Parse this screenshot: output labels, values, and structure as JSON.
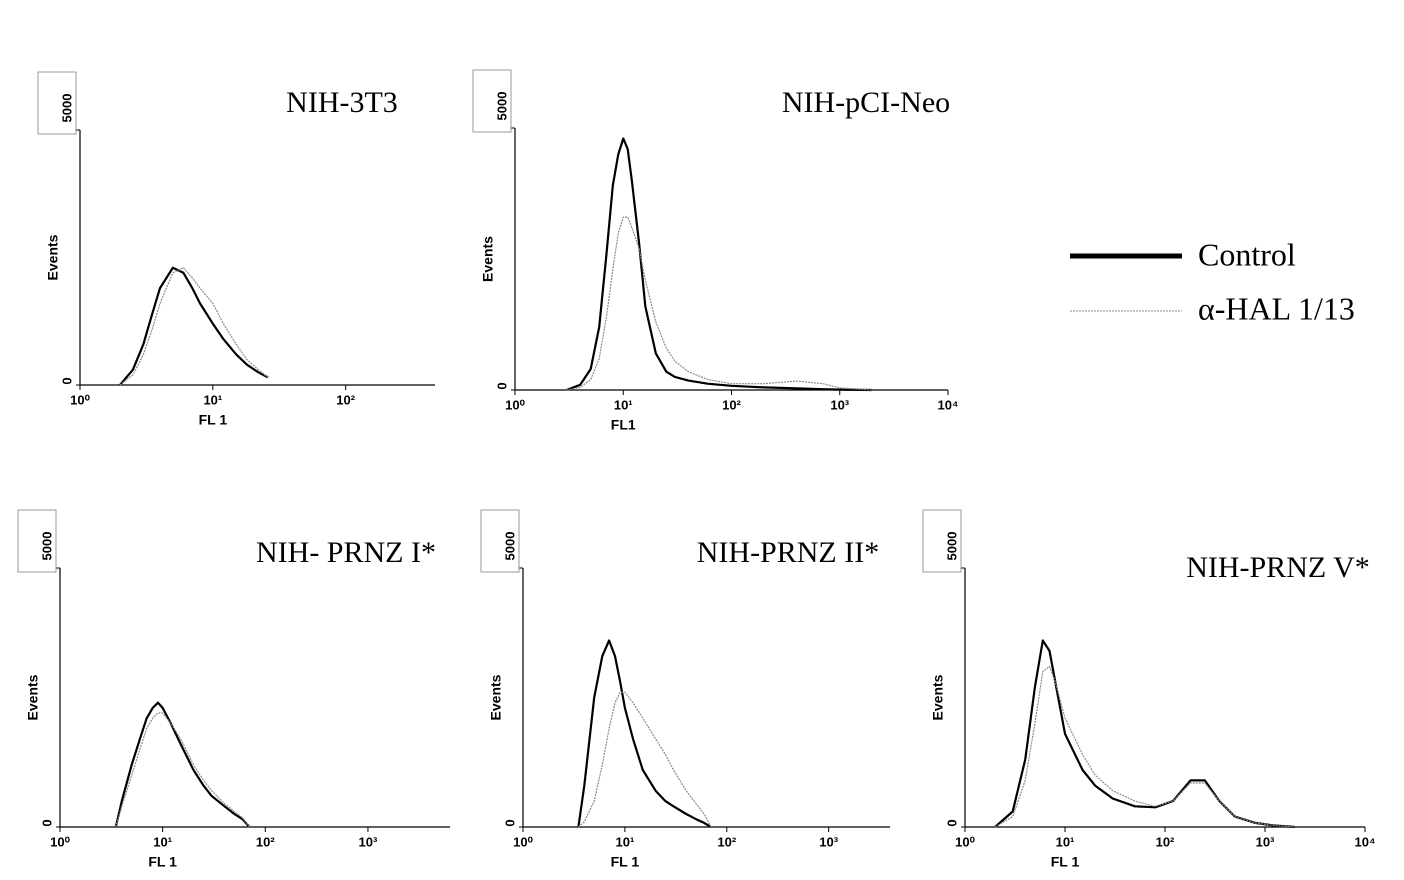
{
  "chart_data": [
    {
      "type": "line",
      "title": "NIH-3T3",
      "xlabel": "FL 1",
      "ylabel": "Events",
      "log_x": true,
      "xlim": [
        1,
        470
      ],
      "xticks": [
        {
          "value": 1,
          "label": "10⁰"
        },
        {
          "value": 10,
          "label": "10¹"
        },
        {
          "value": 100,
          "label": "10²"
        }
      ],
      "ylim": [
        0,
        5000
      ],
      "yticks": [
        0,
        5000
      ],
      "x": [
        2,
        2.5,
        3,
        3.5,
        4,
        5,
        6,
        7,
        8,
        10,
        12,
        15,
        18,
        22,
        26
      ],
      "series": [
        {
          "color": "#000000",
          "values": [
            0,
            300,
            800,
            1400,
            1900,
            2300,
            2200,
            1900,
            1600,
            1200,
            900,
            600,
            400,
            250,
            150
          ]
        },
        {
          "color": "#8a8a8a",
          "values": [
            0,
            200,
            600,
            1100,
            1600,
            2200,
            2300,
            2100,
            1900,
            1600,
            1200,
            800,
            500,
            300,
            150
          ]
        }
      ]
    },
    {
      "type": "line",
      "title": "NIH-pCI-Neo",
      "xlabel": "FL1",
      "ylabel": "Events",
      "log_x": true,
      "xlim": [
        1,
        10000
      ],
      "xticks": [
        {
          "value": 1,
          "label": "10⁰"
        },
        {
          "value": 10,
          "label": "10¹"
        },
        {
          "value": 100,
          "label": "10²"
        },
        {
          "value": 1000,
          "label": "10³"
        },
        {
          "value": 10000,
          "label": "10⁴"
        }
      ],
      "ylim": [
        0,
        5000
      ],
      "yticks": [
        0,
        5000
      ],
      "x": [
        3,
        4,
        5,
        6,
        7,
        8,
        9,
        10,
        11,
        12,
        14,
        16,
        20,
        25,
        30,
        40,
        60,
        100,
        200,
        400,
        700,
        1000,
        2000
      ],
      "series": [
        {
          "name": "Control",
          "color": "#000000",
          "values": [
            0,
            100,
            400,
            1200,
            2600,
            3900,
            4500,
            4800,
            4600,
            4000,
            2800,
            1600,
            700,
            350,
            250,
            180,
            120,
            80,
            50,
            30,
            15,
            8,
            0
          ]
        },
        {
          "name": "α-HAL 1/13",
          "color": "#8a8a8a",
          "values": [
            0,
            50,
            200,
            600,
            1400,
            2300,
            3000,
            3300,
            3300,
            3100,
            2700,
            2100,
            1300,
            800,
            550,
            350,
            200,
            120,
            120,
            170,
            120,
            40,
            0
          ]
        }
      ]
    },
    {
      "type": "line",
      "title": "NIH- PRNZ I*",
      "xlabel": "FL 1",
      "ylabel": "Events",
      "log_x": true,
      "xlim": [
        1,
        6300
      ],
      "xticks": [
        {
          "value": 1,
          "label": "10⁰"
        },
        {
          "value": 10,
          "label": "10¹"
        },
        {
          "value": 100,
          "label": "10²"
        },
        {
          "value": 1000,
          "label": "10³"
        }
      ],
      "ylim": [
        0,
        5000
      ],
      "yticks": [
        0,
        5000
      ],
      "x": [
        3.5,
        4,
        5,
        6,
        7,
        8,
        9,
        10,
        12,
        15,
        20,
        25,
        30,
        40,
        50,
        60,
        70
      ],
      "series": [
        {
          "color": "#000000",
          "values": [
            0,
            500,
            1200,
            1700,
            2100,
            2300,
            2400,
            2300,
            2000,
            1600,
            1100,
            800,
            600,
            400,
            250,
            150,
            0
          ]
        },
        {
          "color": "#8a8a8a",
          "values": [
            0,
            400,
            1000,
            1500,
            1900,
            2100,
            2200,
            2200,
            2000,
            1700,
            1200,
            900,
            700,
            450,
            300,
            180,
            0
          ]
        }
      ]
    },
    {
      "type": "line",
      "title": "NIH-PRNZ II*",
      "xlabel": "FL 1",
      "ylabel": "Events",
      "log_x": true,
      "xlim": [
        1,
        4000
      ],
      "xticks": [
        {
          "value": 1,
          "label": "10⁰"
        },
        {
          "value": 10,
          "label": "10¹"
        },
        {
          "value": 100,
          "label": "10²"
        },
        {
          "value": 1000,
          "label": "10³"
        }
      ],
      "ylim": [
        0,
        5000
      ],
      "yticks": [
        0,
        5000
      ],
      "x": [
        3.5,
        4,
        5,
        6,
        7,
        8,
        9,
        10,
        12,
        15,
        20,
        25,
        30,
        40,
        50,
        60,
        70
      ],
      "series": [
        {
          "color": "#000000",
          "values": [
            0,
            800,
            2500,
            3300,
            3600,
            3300,
            2800,
            2300,
            1700,
            1100,
            700,
            500,
            400,
            250,
            150,
            80,
            0
          ]
        },
        {
          "color": "#8a8a8a",
          "values": [
            0,
            100,
            500,
            1200,
            1900,
            2400,
            2600,
            2600,
            2400,
            2100,
            1700,
            1400,
            1100,
            700,
            450,
            250,
            0
          ]
        }
      ]
    },
    {
      "type": "line",
      "title": "NIH-PRNZ V*",
      "xlabel": "FL 1",
      "ylabel": "Events",
      "log_x": true,
      "xlim": [
        1,
        10000
      ],
      "xticks": [
        {
          "value": 1,
          "label": "10⁰"
        },
        {
          "value": 10,
          "label": "10¹"
        },
        {
          "value": 100,
          "label": "10²"
        },
        {
          "value": 1000,
          "label": "10³"
        },
        {
          "value": 10000,
          "label": "10⁴"
        }
      ],
      "ylim": [
        0,
        5000
      ],
      "yticks": [
        0,
        5000
      ],
      "x": [
        2,
        3,
        4,
        5,
        6,
        7,
        8,
        10,
        15,
        20,
        30,
        50,
        80,
        120,
        180,
        250,
        350,
        500,
        800,
        1200,
        2000
      ],
      "series": [
        {
          "color": "#000000",
          "values": [
            0,
            300,
            1300,
            2700,
            3600,
            3400,
            2800,
            1800,
            1100,
            800,
            550,
            400,
            380,
            500,
            900,
            900,
            500,
            200,
            80,
            30,
            0
          ]
        },
        {
          "color": "#8a8a8a",
          "values": [
            0,
            200,
            900,
            2000,
            3000,
            3100,
            2800,
            2100,
            1400,
            1000,
            700,
            500,
            400,
            500,
            850,
            850,
            500,
            200,
            80,
            30,
            0
          ]
        }
      ]
    }
  ]
}
